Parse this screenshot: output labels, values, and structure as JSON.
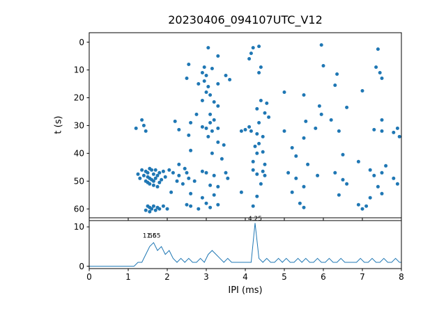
{
  "figure": {
    "title": "20230406_094107UTC_V12",
    "xlabel": "IPI (ms)",
    "ylabel": "t (s)"
  },
  "chart_data": [
    {
      "type": "scatter",
      "title": "20230406_094107UTC_V12",
      "xlabel": "",
      "ylabel": "t (s)",
      "xlim": [
        0,
        8
      ],
      "ylim": [
        0,
        60
      ],
      "y_inverted": true,
      "xticks": [
        0,
        1,
        2,
        3,
        4,
        5,
        6,
        7,
        8
      ],
      "yticks": [
        0,
        10,
        20,
        30,
        40,
        50,
        60
      ],
      "marker_color": "#1f77b4",
      "points": [
        [
          3.05,
          2
        ],
        [
          4.2,
          2
        ],
        [
          4.35,
          1.5
        ],
        [
          5.95,
          1
        ],
        [
          7.4,
          2.5
        ],
        [
          4.15,
          4
        ],
        [
          3.3,
          5
        ],
        [
          4.1,
          6
        ],
        [
          2.55,
          8
        ],
        [
          2.95,
          9
        ],
        [
          3.15,
          9.5
        ],
        [
          4.4,
          9
        ],
        [
          7.35,
          9
        ],
        [
          6.0,
          8.5
        ],
        [
          2.9,
          11
        ],
        [
          3.0,
          12
        ],
        [
          2.5,
          13
        ],
        [
          3.5,
          12
        ],
        [
          3.6,
          13.5
        ],
        [
          4.35,
          11
        ],
        [
          6.35,
          11.5
        ],
        [
          7.45,
          11
        ],
        [
          2.8,
          15
        ],
        [
          3.3,
          15
        ],
        [
          3.05,
          16
        ],
        [
          6.3,
          15.5
        ],
        [
          3.0,
          18
        ],
        [
          3.1,
          19
        ],
        [
          5.0,
          18
        ],
        [
          5.5,
          19
        ],
        [
          7.0,
          17.5
        ],
        [
          2.95,
          14
        ],
        [
          7.5,
          13
        ],
        [
          2.9,
          21
        ],
        [
          3.2,
          21.5
        ],
        [
          4.4,
          21
        ],
        [
          4.55,
          22
        ],
        [
          3.3,
          23
        ],
        [
          4.3,
          24
        ],
        [
          5.9,
          23
        ],
        [
          6.6,
          23.5
        ],
        [
          2.75,
          26
        ],
        [
          3.1,
          26
        ],
        [
          4.5,
          25.5
        ],
        [
          4.6,
          27
        ],
        [
          5.95,
          26
        ],
        [
          1.35,
          28
        ],
        [
          2.2,
          28.5
        ],
        [
          2.6,
          29
        ],
        [
          3.1,
          29
        ],
        [
          3.2,
          28
        ],
        [
          4.35,
          29
        ],
        [
          5.55,
          28.5
        ],
        [
          6.2,
          28
        ],
        [
          7.5,
          28
        ],
        [
          1.2,
          31
        ],
        [
          1.45,
          32
        ],
        [
          2.3,
          31.5
        ],
        [
          2.9,
          30.5
        ],
        [
          3.0,
          31
        ],
        [
          3.15,
          32
        ],
        [
          3.3,
          31
        ],
        [
          3.9,
          32
        ],
        [
          4.0,
          31.5
        ],
        [
          4.15,
          32
        ],
        [
          4.3,
          33
        ],
        [
          5.0,
          32
        ],
        [
          5.8,
          31
        ],
        [
          6.4,
          32
        ],
        [
          7.3,
          31.5
        ],
        [
          7.5,
          32
        ],
        [
          7.8,
          32.5
        ],
        [
          7.9,
          31
        ],
        [
          2.55,
          33.5
        ],
        [
          3.05,
          34
        ],
        [
          4.45,
          34
        ],
        [
          5.5,
          34.5
        ],
        [
          7.95,
          34
        ],
        [
          1.4,
          30
        ],
        [
          4.1,
          30.5
        ],
        [
          3.3,
          36
        ],
        [
          3.45,
          37
        ],
        [
          4.25,
          37.5
        ],
        [
          2.6,
          39
        ],
        [
          3.15,
          40
        ],
        [
          4.3,
          40
        ],
        [
          4.45,
          39.5
        ],
        [
          5.3,
          41
        ],
        [
          6.5,
          40.5
        ],
        [
          3.4,
          42
        ],
        [
          4.2,
          43
        ],
        [
          4.5,
          44
        ],
        [
          5.6,
          44
        ],
        [
          6.9,
          43
        ],
        [
          7.6,
          44.5
        ],
        [
          2.3,
          44
        ],
        [
          4.35,
          36.5
        ],
        [
          5.2,
          38
        ],
        [
          1.35,
          46
        ],
        [
          1.45,
          46.5
        ],
        [
          1.5,
          47
        ],
        [
          1.55,
          45.5
        ],
        [
          1.6,
          46
        ],
        [
          1.65,
          47.5
        ],
        [
          1.4,
          48
        ],
        [
          1.5,
          48.5
        ],
        [
          1.55,
          49
        ],
        [
          1.6,
          49.5
        ],
        [
          1.45,
          50
        ],
        [
          1.5,
          50.5
        ],
        [
          1.65,
          50
        ],
        [
          1.7,
          49
        ],
        [
          1.75,
          48
        ],
        [
          1.8,
          47
        ],
        [
          1.85,
          49.5
        ],
        [
          1.55,
          51
        ],
        [
          1.65,
          51.5
        ],
        [
          1.75,
          52
        ],
        [
          1.3,
          49
        ],
        [
          1.25,
          47.5
        ],
        [
          1.9,
          46.5
        ],
        [
          1.95,
          48.5
        ],
        [
          1.7,
          46
        ],
        [
          1.8,
          50.5
        ],
        [
          2.05,
          46
        ],
        [
          2.15,
          47
        ],
        [
          2.3,
          48
        ],
        [
          2.5,
          47
        ],
        [
          2.55,
          49
        ],
        [
          2.7,
          50
        ],
        [
          2.9,
          46.5
        ],
        [
          3.0,
          47
        ],
        [
          3.2,
          48
        ],
        [
          3.5,
          47
        ],
        [
          3.55,
          49
        ],
        [
          4.2,
          46
        ],
        [
          4.3,
          47.5
        ],
        [
          4.45,
          46.5
        ],
        [
          4.5,
          48
        ],
        [
          5.1,
          47
        ],
        [
          5.3,
          49
        ],
        [
          5.85,
          48
        ],
        [
          6.3,
          47
        ],
        [
          6.5,
          49.5
        ],
        [
          7.2,
          46
        ],
        [
          7.3,
          48
        ],
        [
          7.5,
          47
        ],
        [
          7.8,
          49
        ],
        [
          2.4,
          51
        ],
        [
          3.1,
          51.5
        ],
        [
          3.3,
          52
        ],
        [
          4.4,
          51
        ],
        [
          5.5,
          52
        ],
        [
          6.6,
          51
        ],
        [
          7.4,
          52
        ],
        [
          7.9,
          51
        ],
        [
          2.25,
          50
        ],
        [
          2.45,
          45.5
        ],
        [
          2.1,
          54
        ],
        [
          2.6,
          54.5
        ],
        [
          3.2,
          55
        ],
        [
          3.9,
          54
        ],
        [
          4.3,
          55.5
        ],
        [
          5.2,
          54
        ],
        [
          6.4,
          55
        ],
        [
          7.2,
          56
        ],
        [
          7.5,
          54.5
        ],
        [
          2.9,
          56
        ],
        [
          1.5,
          59
        ],
        [
          1.55,
          59.5
        ],
        [
          1.6,
          60
        ],
        [
          1.65,
          59
        ],
        [
          1.7,
          60.5
        ],
        [
          1.75,
          59.5
        ],
        [
          1.8,
          60
        ],
        [
          1.45,
          60.5
        ],
        [
          1.55,
          61
        ],
        [
          1.9,
          59
        ],
        [
          2.0,
          60
        ],
        [
          2.5,
          58.5
        ],
        [
          2.6,
          59
        ],
        [
          2.8,
          60
        ],
        [
          3.0,
          58
        ],
        [
          3.1,
          59.5
        ],
        [
          3.3,
          58.5
        ],
        [
          4.2,
          59
        ],
        [
          5.4,
          58
        ],
        [
          5.5,
          59.5
        ],
        [
          6.9,
          58.5
        ],
        [
          7.0,
          60
        ],
        [
          7.1,
          59
        ]
      ]
    },
    {
      "type": "line",
      "title": "",
      "xlabel": "IPI (ms)",
      "ylabel": "",
      "xlim": [
        0,
        8
      ],
      "ylim": [
        0,
        11.6
      ],
      "xticks": [
        0,
        1,
        2,
        3,
        4,
        5,
        6,
        7,
        8
      ],
      "yticks": [
        0,
        10
      ],
      "line_color": "#1f77b4",
      "bin_start": 0,
      "bin_width": 0.1,
      "counts": [
        0,
        0,
        0,
        0,
        0,
        0,
        0,
        0,
        0,
        0,
        0,
        0,
        1,
        1,
        3,
        5,
        6,
        4,
        5,
        3,
        4,
        2,
        1,
        2,
        1,
        2,
        1,
        1,
        2,
        1,
        3,
        4,
        3,
        2,
        1,
        2,
        1,
        1,
        1,
        1,
        1,
        1,
        11,
        2,
        1,
        2,
        1,
        1,
        2,
        1,
        2,
        1,
        1,
        2,
        1,
        2,
        1,
        1,
        2,
        1,
        1,
        2,
        1,
        1,
        2,
        1,
        1,
        1,
        1,
        2,
        1,
        1,
        2,
        1,
        1,
        2,
        1,
        1,
        2,
        1
      ],
      "annotations": [
        {
          "x": 1.55,
          "y": 6.9,
          "label": "1.55"
        },
        {
          "x": 1.65,
          "y": 6.9,
          "label": "1.65"
        },
        {
          "x": 4.25,
          "y": 11.25,
          "label": "4.25"
        }
      ]
    }
  ]
}
